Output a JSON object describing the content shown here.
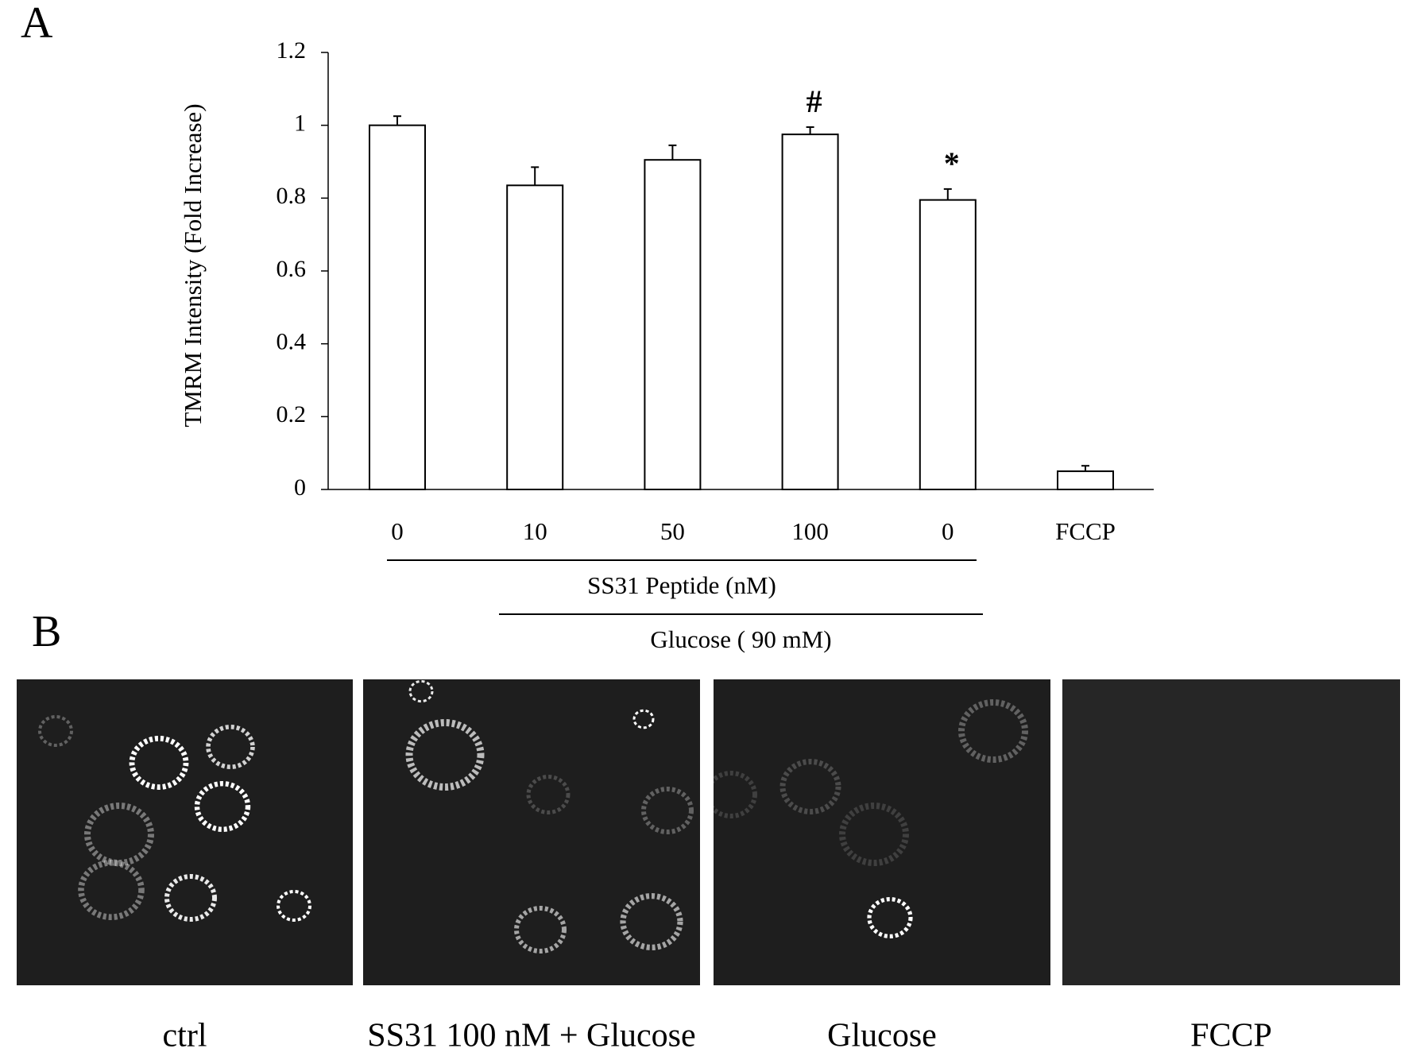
{
  "chart_data": {
    "type": "bar",
    "panel_label": "A",
    "y_label": "TMRM Intensity (Fold Increase)",
    "categories": [
      "0",
      "10",
      "50",
      "100",
      "0",
      "FCCP"
    ],
    "values": [
      1.0,
      0.835,
      0.905,
      0.975,
      0.795,
      0.05
    ],
    "errors": [
      0.025,
      0.05,
      0.04,
      0.02,
      0.03,
      0.015
    ],
    "markers": [
      null,
      null,
      null,
      "#",
      "*",
      null
    ],
    "groups": [
      "SS31 Peptide (nM)",
      "Glucose ( 90 mM)"
    ],
    "color": "#ffffff",
    "ylim": [
      0,
      1.2
    ],
    "yticks": [
      0,
      0.2,
      0.4,
      0.6,
      0.8,
      1,
      1.2
    ]
  },
  "panel_b": {
    "panel_label": "B",
    "captions": [
      "ctrl",
      "SS31 100 nM + Glucose",
      "Glucose",
      "FCCP"
    ]
  }
}
